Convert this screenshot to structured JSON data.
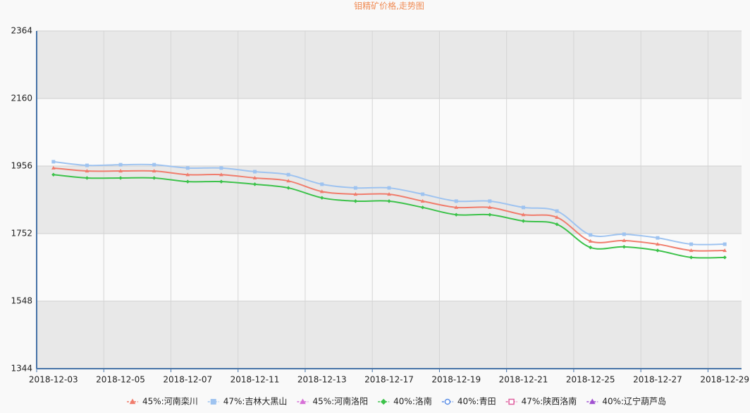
{
  "chart_data": {
    "type": "line",
    "title": "钼精矿价格,走势图",
    "categories": [
      "2018-12-03",
      null,
      "2018-12-05",
      null,
      "2018-12-07",
      null,
      "2018-12-11",
      null,
      "2018-12-13",
      null,
      "2018-12-17",
      null,
      "2018-12-19",
      null,
      "2018-12-21",
      null,
      "2018-12-25",
      null,
      "2018-12-27",
      null,
      "2018-12-29"
    ],
    "ylim": [
      1344,
      2364
    ],
    "yticks": [
      1344,
      1548,
      1752,
      1956,
      2160,
      2364
    ],
    "grid": true,
    "legend": "bottom",
    "series": [
      {
        "name": "45%:河南栾川",
        "color": "#f07c6c",
        "marker": "triangle",
        "values": [
          1950,
          1941,
          1941,
          1941,
          1930,
          1930,
          1920,
          1911,
          1879,
          1871,
          1871,
          1850,
          1831,
          1831,
          1809,
          1801,
          1729,
          1731,
          1720,
          1701,
          1701
        ]
      },
      {
        "name": "47%:吉林大黑山",
        "color": "#9ec3f0",
        "marker": "square",
        "values": [
          1969,
          1958,
          1960,
          1960,
          1950,
          1950,
          1939,
          1930,
          1901,
          1890,
          1890,
          1871,
          1850,
          1850,
          1831,
          1820,
          1748,
          1750,
          1739,
          1720,
          1720
        ]
      },
      {
        "name": "45%:河南洛阳",
        "color": "#d66fd6",
        "marker": "triangle",
        "values": [
          null,
          null,
          null,
          null,
          null,
          null,
          null,
          null,
          null,
          null,
          null,
          null,
          null,
          null,
          null,
          null,
          null,
          null,
          null,
          null,
          null
        ]
      },
      {
        "name": "40%:洛南",
        "color": "#3cc24a",
        "marker": "diamond",
        "values": [
          1930,
          1920,
          1920,
          1920,
          1909,
          1909,
          1901,
          1890,
          1860,
          1850,
          1850,
          1831,
          1809,
          1809,
          1790,
          1780,
          1710,
          1712,
          1701,
          1680,
          1680
        ]
      },
      {
        "name": "40%:青田",
        "color": "#5b8ee6",
        "marker": "circle-open",
        "values": [
          null,
          null,
          null,
          null,
          null,
          null,
          null,
          null,
          null,
          null,
          null,
          null,
          null,
          null,
          null,
          null,
          null,
          null,
          null,
          null,
          null
        ]
      },
      {
        "name": "47%:陕西洛南",
        "color": "#e060a0",
        "marker": "square-open",
        "values": [
          null,
          null,
          null,
          null,
          null,
          null,
          null,
          null,
          null,
          null,
          null,
          null,
          null,
          null,
          null,
          null,
          null,
          null,
          null,
          null,
          null
        ]
      },
      {
        "name": "40%:辽宁葫芦岛",
        "color": "#a050d0",
        "marker": "triangle",
        "values": [
          null,
          null,
          null,
          null,
          null,
          null,
          null,
          null,
          null,
          null,
          null,
          null,
          null,
          null,
          null,
          null,
          null,
          null,
          null,
          null,
          null
        ]
      }
    ]
  }
}
